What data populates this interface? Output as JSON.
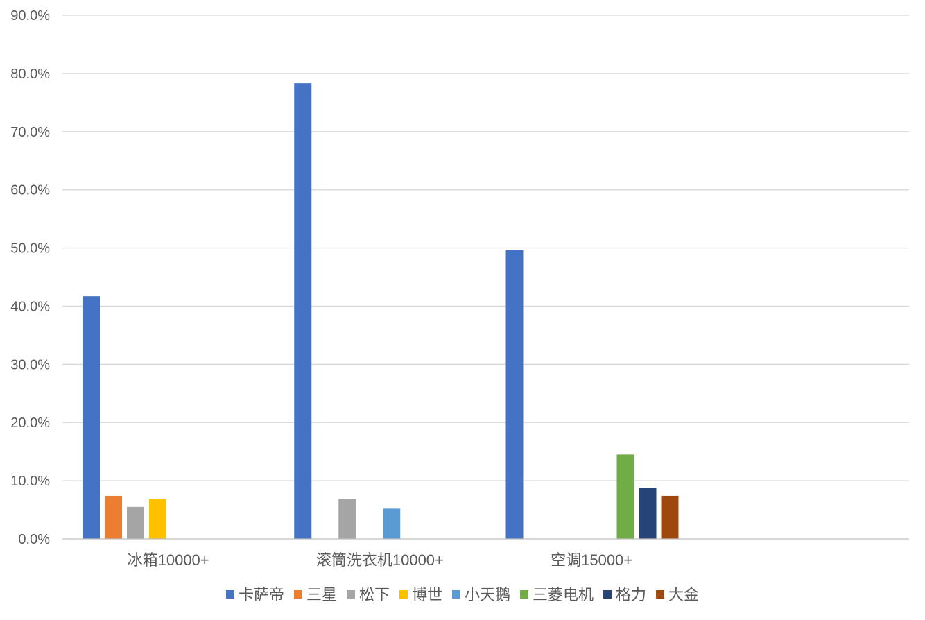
{
  "chart_data": {
    "type": "bar",
    "title": "",
    "xlabel": "",
    "ylabel": "",
    "ylim": [
      0,
      90
    ],
    "y_tick_values": [
      0,
      10,
      20,
      30,
      40,
      50,
      60,
      70,
      80,
      90
    ],
    "y_tick_labels": [
      "0.0%",
      "10.0%",
      "20.0%",
      "30.0%",
      "40.0%",
      "50.0%",
      "60.0%",
      "70.0%",
      "80.0%",
      "90.0%"
    ],
    "grid": true,
    "legend_position": "bottom",
    "categories": [
      "冰箱10000+",
      "滚筒洗衣机10000+",
      "空调15000+",
      ""
    ],
    "series": [
      {
        "name": "卡萨帝",
        "color": "#4472C4",
        "values": [
          41.7,
          78.3,
          49.6,
          null
        ]
      },
      {
        "name": "三星",
        "color": "#ED7D31",
        "values": [
          7.4,
          null,
          null,
          null
        ]
      },
      {
        "name": "松下",
        "color": "#A5A5A5",
        "values": [
          5.5,
          6.8,
          null,
          null
        ]
      },
      {
        "name": "博世",
        "color": "#FFC000",
        "values": [
          6.8,
          null,
          null,
          null
        ]
      },
      {
        "name": "小天鹅",
        "color": "#5B9BD5",
        "values": [
          null,
          5.2,
          null,
          null
        ]
      },
      {
        "name": "三菱电机",
        "color": "#70AD47",
        "values": [
          null,
          null,
          14.5,
          null
        ]
      },
      {
        "name": "格力",
        "color": "#264478",
        "values": [
          null,
          null,
          8.8,
          null
        ]
      },
      {
        "name": "大金",
        "color": "#9E480E",
        "values": [
          null,
          null,
          7.4,
          null
        ]
      }
    ]
  }
}
